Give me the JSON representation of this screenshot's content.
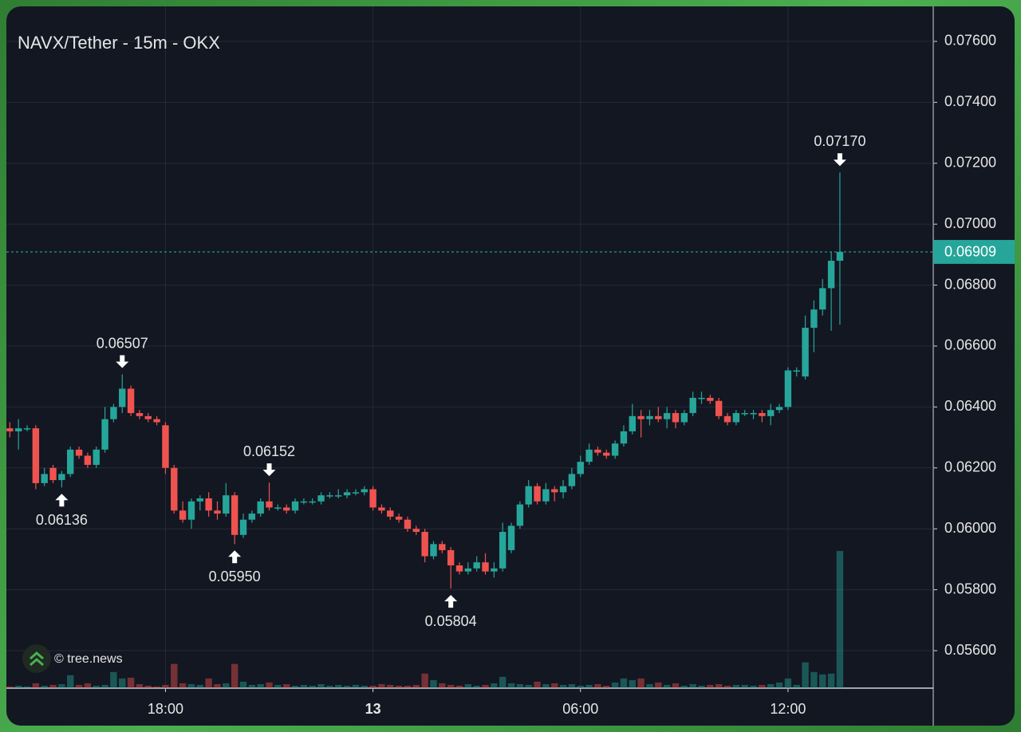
{
  "chart_data": {
    "type": "candlestick",
    "title": "NAVX/Tether - 15m - OKX",
    "watermark": "© tree.news",
    "up_color": "#26a69a",
    "down_color": "#ef5350",
    "grid": true,
    "xlim": [
      13.4,
      40.2
    ],
    "ylim": [
      0.05477,
      0.07715
    ],
    "xticks": [
      {
        "value": 18,
        "label": "18:00"
      },
      {
        "value": 24,
        "label": "13"
      },
      {
        "value": 30,
        "label": "06:00"
      },
      {
        "value": 36,
        "label": "12:00"
      }
    ],
    "yticks": [
      {
        "value": 0.056,
        "label": "0.05600"
      },
      {
        "value": 0.058,
        "label": "0.05800"
      },
      {
        "value": 0.06,
        "label": "0.06000"
      },
      {
        "value": 0.062,
        "label": "0.06200"
      },
      {
        "value": 0.064,
        "label": "0.06400"
      },
      {
        "value": 0.066,
        "label": "0.06600"
      },
      {
        "value": 0.068,
        "label": "0.06800"
      },
      {
        "value": 0.07,
        "label": "0.07000"
      },
      {
        "value": 0.072,
        "label": "0.07200"
      },
      {
        "value": 0.074,
        "label": "0.07400"
      },
      {
        "value": 0.076,
        "label": "0.07600"
      }
    ],
    "last_price": 0.06909,
    "x": [
      13.5,
      13.75,
      14,
      14.25,
      14.5,
      14.75,
      15,
      15.25,
      15.5,
      15.75,
      16,
      16.25,
      16.5,
      16.75,
      17,
      17.25,
      17.5,
      17.75,
      18,
      18.25,
      18.5,
      18.75,
      19,
      19.25,
      19.5,
      19.75,
      20,
      20.25,
      20.5,
      20.75,
      21,
      21.25,
      21.5,
      21.75,
      22,
      22.25,
      22.5,
      22.75,
      23,
      23.25,
      23.5,
      23.75,
      24,
      24.25,
      24.5,
      24.75,
      25,
      25.25,
      25.5,
      25.75,
      26,
      26.25,
      26.5,
      26.75,
      27,
      27.25,
      27.5,
      27.75,
      28,
      28.25,
      28.5,
      28.75,
      29,
      29.25,
      29.5,
      29.75,
      30,
      30.25,
      30.5,
      30.75,
      31,
      31.25,
      31.5,
      31.75,
      32,
      32.25,
      32.5,
      32.75,
      33,
      33.25,
      33.5,
      33.75,
      34,
      34.25,
      34.5,
      34.75,
      35,
      35.25,
      35.5,
      35.75,
      36,
      36.25,
      36.5,
      36.75,
      37,
      37.25,
      37.5
    ],
    "ohlc": [
      [
        0.0633,
        0.0635,
        0.063,
        0.0632
      ],
      [
        0.0632,
        0.0636,
        0.0626,
        0.0633
      ],
      [
        0.0633,
        0.0634,
        0.0632,
        0.0633
      ],
      [
        0.0633,
        0.0634,
        0.0613,
        0.0615
      ],
      [
        0.0615,
        0.062,
        0.0614,
        0.0618
      ],
      [
        0.062,
        0.0621,
        0.0615,
        0.0616
      ],
      [
        0.0616,
        0.0619,
        0.06136,
        0.0618
      ],
      [
        0.0618,
        0.0627,
        0.0617,
        0.0626
      ],
      [
        0.0626,
        0.0627,
        0.0623,
        0.0624
      ],
      [
        0.0624,
        0.0625,
        0.062,
        0.0621
      ],
      [
        0.0621,
        0.0627,
        0.062,
        0.0626
      ],
      [
        0.0626,
        0.064,
        0.0625,
        0.0636
      ],
      [
        0.0636,
        0.0641,
        0.0635,
        0.064
      ],
      [
        0.064,
        0.06507,
        0.0638,
        0.0646
      ],
      [
        0.0646,
        0.0647,
        0.0637,
        0.0638
      ],
      [
        0.0638,
        0.0639,
        0.0636,
        0.0637
      ],
      [
        0.0637,
        0.0638,
        0.0635,
        0.0636
      ],
      [
        0.0636,
        0.0637,
        0.0634,
        0.0635
      ],
      [
        0.0634,
        0.0635,
        0.0618,
        0.062
      ],
      [
        0.062,
        0.0621,
        0.0605,
        0.0606
      ],
      [
        0.0606,
        0.0609,
        0.0602,
        0.0603
      ],
      [
        0.0603,
        0.061,
        0.06,
        0.0609
      ],
      [
        0.0609,
        0.0611,
        0.0606,
        0.061
      ],
      [
        0.061,
        0.0612,
        0.0604,
        0.0606
      ],
      [
        0.0606,
        0.0609,
        0.0603,
        0.0605
      ],
      [
        0.0605,
        0.0615,
        0.0604,
        0.0611
      ],
      [
        0.0611,
        0.0612,
        0.0595,
        0.0598
      ],
      [
        0.0598,
        0.0605,
        0.0597,
        0.0603
      ],
      [
        0.0603,
        0.0606,
        0.0602,
        0.0605
      ],
      [
        0.0605,
        0.061,
        0.0604,
        0.0609
      ],
      [
        0.0609,
        0.06152,
        0.0606,
        0.0607
      ],
      [
        0.0607,
        0.0608,
        0.0606,
        0.0607
      ],
      [
        0.0607,
        0.0608,
        0.0605,
        0.0606
      ],
      [
        0.0606,
        0.061,
        0.0605,
        0.0609
      ],
      [
        0.0609,
        0.061,
        0.0608,
        0.0609
      ],
      [
        0.0609,
        0.061,
        0.0608,
        0.0609
      ],
      [
        0.0609,
        0.0612,
        0.0608,
        0.0611
      ],
      [
        0.0611,
        0.0612,
        0.061,
        0.0611
      ],
      [
        0.0611,
        0.0613,
        0.061,
        0.0611
      ],
      [
        0.0611,
        0.0613,
        0.061,
        0.0612
      ],
      [
        0.0612,
        0.0613,
        0.0611,
        0.0612
      ],
      [
        0.0612,
        0.0614,
        0.0611,
        0.0613
      ],
      [
        0.0613,
        0.0614,
        0.0606,
        0.0607
      ],
      [
        0.0607,
        0.0608,
        0.0605,
        0.0606
      ],
      [
        0.0606,
        0.0607,
        0.0603,
        0.0604
      ],
      [
        0.0604,
        0.0605,
        0.0602,
        0.0603
      ],
      [
        0.0603,
        0.0604,
        0.0599,
        0.06
      ],
      [
        0.06,
        0.0601,
        0.0598,
        0.0599
      ],
      [
        0.0599,
        0.06,
        0.0589,
        0.0591
      ],
      [
        0.0591,
        0.0596,
        0.059,
        0.0595
      ],
      [
        0.0595,
        0.0596,
        0.0592,
        0.0593
      ],
      [
        0.0593,
        0.0594,
        0.05804,
        0.0588
      ],
      [
        0.0588,
        0.0589,
        0.0585,
        0.0586
      ],
      [
        0.0586,
        0.0589,
        0.0585,
        0.0587
      ],
      [
        0.0587,
        0.0591,
        0.0586,
        0.0589
      ],
      [
        0.0589,
        0.0592,
        0.0585,
        0.0586
      ],
      [
        0.0586,
        0.0589,
        0.0584,
        0.0587
      ],
      [
        0.0587,
        0.0602,
        0.0586,
        0.0599
      ],
      [
        0.0593,
        0.0602,
        0.0592,
        0.0601
      ],
      [
        0.0601,
        0.0609,
        0.06,
        0.0608
      ],
      [
        0.0608,
        0.0616,
        0.0607,
        0.0614
      ],
      [
        0.0614,
        0.0615,
        0.0608,
        0.0609
      ],
      [
        0.0609,
        0.0615,
        0.0608,
        0.0613
      ],
      [
        0.0613,
        0.0614,
        0.0609,
        0.0612
      ],
      [
        0.0612,
        0.0616,
        0.061,
        0.0614
      ],
      [
        0.0614,
        0.062,
        0.0613,
        0.0618
      ],
      [
        0.0618,
        0.0624,
        0.0617,
        0.0622
      ],
      [
        0.0622,
        0.0628,
        0.0621,
        0.0626
      ],
      [
        0.0626,
        0.0627,
        0.0624,
        0.0625
      ],
      [
        0.0625,
        0.0626,
        0.0623,
        0.0624
      ],
      [
        0.0624,
        0.0629,
        0.0623,
        0.0628
      ],
      [
        0.0628,
        0.0634,
        0.0627,
        0.0632
      ],
      [
        0.0632,
        0.0641,
        0.0631,
        0.0637
      ],
      [
        0.0637,
        0.0639,
        0.063,
        0.0636
      ],
      [
        0.0636,
        0.0639,
        0.0634,
        0.0637
      ],
      [
        0.0637,
        0.064,
        0.0635,
        0.0636
      ],
      [
        0.0636,
        0.064,
        0.0633,
        0.0638
      ],
      [
        0.0638,
        0.0639,
        0.0633,
        0.0635
      ],
      [
        0.0635,
        0.0639,
        0.0634,
        0.0638
      ],
      [
        0.0638,
        0.0645,
        0.0637,
        0.0643
      ],
      [
        0.0643,
        0.0645,
        0.0641,
        0.0643
      ],
      [
        0.0643,
        0.0644,
        0.0641,
        0.0642
      ],
      [
        0.0642,
        0.0643,
        0.0636,
        0.0637
      ],
      [
        0.0637,
        0.0638,
        0.0634,
        0.0635
      ],
      [
        0.0635,
        0.0639,
        0.0634,
        0.0638
      ],
      [
        0.0638,
        0.0639,
        0.0637,
        0.0638
      ],
      [
        0.0638,
        0.0639,
        0.0636,
        0.0638
      ],
      [
        0.0638,
        0.0639,
        0.0635,
        0.0637
      ],
      [
        0.0637,
        0.0641,
        0.0634,
        0.0639
      ],
      [
        0.0639,
        0.0641,
        0.0638,
        0.064
      ],
      [
        0.064,
        0.0653,
        0.0639,
        0.0652
      ],
      [
        0.0652,
        0.0653,
        0.065,
        0.0652
      ],
      [
        0.065,
        0.067,
        0.0649,
        0.0666
      ],
      [
        0.0666,
        0.0675,
        0.0658,
        0.0672
      ],
      [
        0.0672,
        0.0682,
        0.067,
        0.0679
      ],
      [
        0.0679,
        0.0691,
        0.0665,
        0.0688
      ],
      [
        0.0688,
        0.0717,
        0.0667,
        0.06909
      ]
    ],
    "volume": [
      2,
      3,
      2,
      6,
      3,
      4,
      5,
      16,
      4,
      6,
      3,
      4,
      20,
      12,
      13,
      5,
      3,
      2,
      4,
      30,
      6,
      5,
      4,
      12,
      5,
      6,
      30,
      8,
      4,
      5,
      7,
      4,
      5,
      3,
      4,
      3,
      5,
      3,
      4,
      3,
      4,
      3,
      3,
      5,
      4,
      3,
      3,
      4,
      18,
      10,
      6,
      4,
      3,
      5,
      3,
      4,
      6,
      14,
      6,
      5,
      4,
      8,
      5,
      6,
      4,
      5,
      3,
      4,
      5,
      3,
      7,
      12,
      10,
      12,
      5,
      7,
      4,
      6,
      3,
      5,
      3,
      4,
      5,
      3,
      4,
      4,
      3,
      4,
      5,
      7,
      12,
      4,
      32,
      20,
      17,
      18,
      170
    ],
    "annotations": [
      {
        "x": 16.75,
        "value": 0.06507,
        "label": "0.06507",
        "position": "above"
      },
      {
        "x": 15,
        "value": 0.06136,
        "label": "0.06136",
        "position": "below"
      },
      {
        "x": 20,
        "value": 0.0595,
        "label": "0.05950",
        "position": "below"
      },
      {
        "x": 21,
        "value": 0.06152,
        "label": "0.06152",
        "position": "above"
      },
      {
        "x": 26.25,
        "value": 0.05804,
        "label": "0.05804",
        "position": "below"
      },
      {
        "x": 37.5,
        "value": 0.0717,
        "label": "0.07170",
        "position": "above"
      }
    ]
  }
}
